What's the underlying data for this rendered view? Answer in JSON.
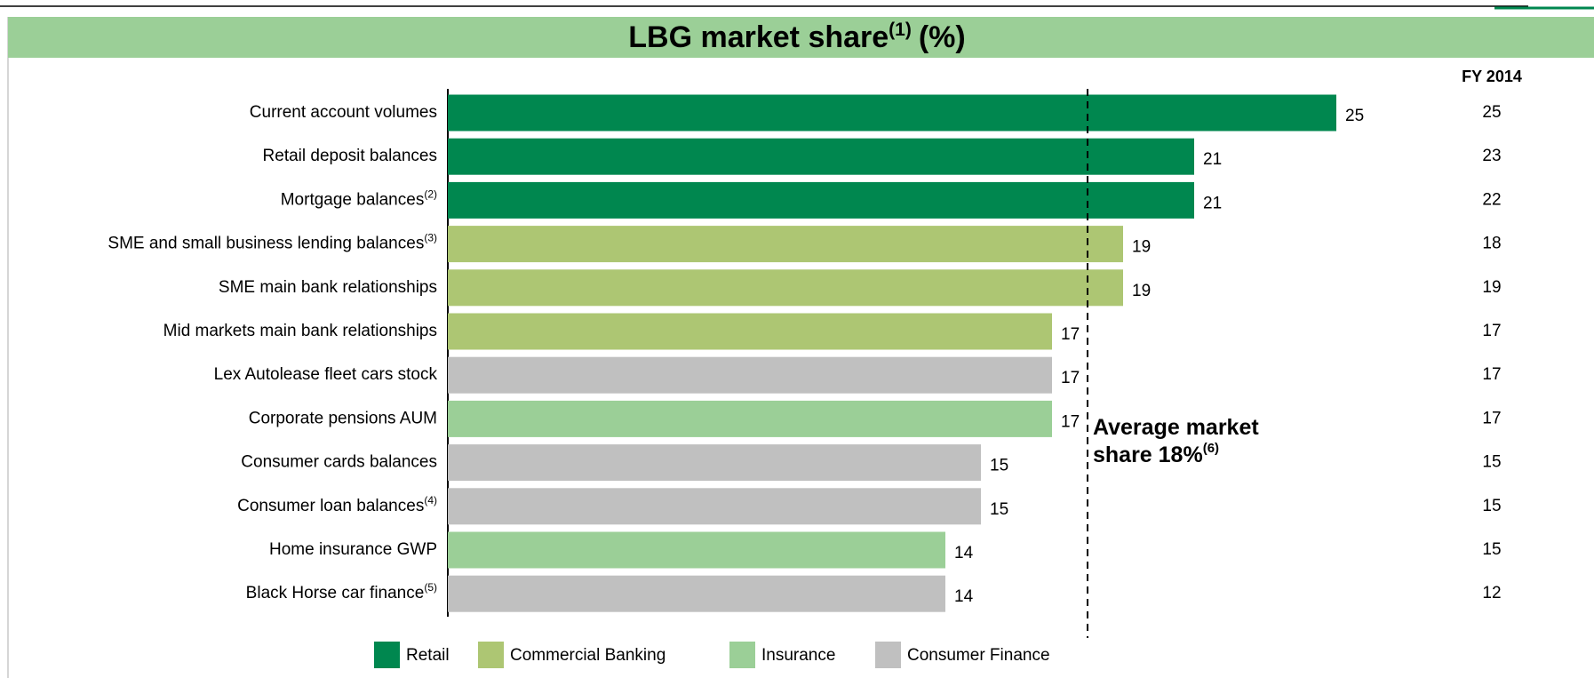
{
  "chart_data": {
    "type": "bar",
    "orientation": "horizontal",
    "title": "LBG market share",
    "title_note": "(1)",
    "title_suffix": "(%)",
    "categories": [
      "Current account volumes",
      "Retail deposit balances",
      "Mortgage balances",
      "SME and small business lending balances",
      "SME main bank relationships",
      "Mid markets main bank relationships",
      "Lex Autolease fleet cars stock",
      "Corporate pensions AUM",
      "Consumer cards balances",
      "Consumer loan balances",
      "Home insurance GWP",
      "Black Horse car finance"
    ],
    "category_notes": [
      null,
      null,
      "(2)",
      "(3)",
      null,
      null,
      null,
      null,
      null,
      "(4)",
      null,
      "(5)"
    ],
    "series": [
      {
        "name": "Retail",
        "color": "#00874f",
        "values": [
          25,
          21,
          21,
          null,
          null,
          null,
          null,
          null,
          null,
          null,
          null,
          null
        ]
      },
      {
        "name": "Commercial Banking",
        "color": "#adc673",
        "values": [
          null,
          null,
          null,
          19,
          19,
          17,
          null,
          null,
          null,
          null,
          null,
          null
        ]
      },
      {
        "name": "Insurance",
        "color": "#9bcf97",
        "values": [
          null,
          null,
          null,
          null,
          null,
          null,
          null,
          17,
          null,
          null,
          14,
          null
        ]
      },
      {
        "name": "Consumer Finance",
        "color": "#c0c0c0",
        "values": [
          null,
          null,
          null,
          null,
          null,
          null,
          17,
          null,
          15,
          15,
          null,
          14
        ]
      }
    ],
    "fy2014": {
      "label": "FY 2014",
      "values": [
        25,
        23,
        22,
        18,
        19,
        17,
        17,
        17,
        15,
        15,
        15,
        12
      ]
    },
    "average": {
      "value": 18,
      "lines": [
        "Average market",
        "share 18%"
      ],
      "note": "(6)"
    }
  }
}
